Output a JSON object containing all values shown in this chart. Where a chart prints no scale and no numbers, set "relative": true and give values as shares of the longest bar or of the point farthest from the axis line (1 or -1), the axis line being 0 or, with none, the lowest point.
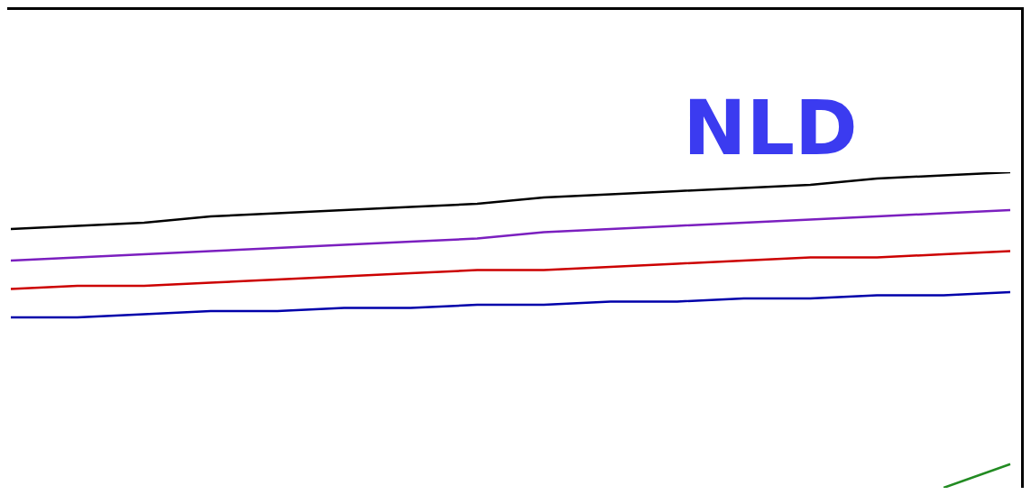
{
  "chart_data": {
    "type": "line",
    "relative": true,
    "annotations": [
      "NLD"
    ],
    "legend": false,
    "marker": "none",
    "categories": [
      null,
      null,
      null,
      null,
      null,
      null,
      null,
      null,
      null,
      null,
      null,
      null,
      null,
      null,
      null,
      null
    ],
    "series": [
      {
        "color": "#000000",
        "values": [
          0.82,
          0.83,
          0.84,
          0.86,
          0.87,
          0.88,
          0.89,
          0.9,
          0.92,
          0.93,
          0.94,
          0.95,
          0.96,
          0.98,
          0.99,
          1.0
        ]
      },
      {
        "color": "#7b1fbf",
        "values": [
          0.72,
          0.73,
          0.74,
          0.75,
          0.76,
          0.77,
          0.78,
          0.79,
          0.81,
          0.82,
          0.83,
          0.84,
          0.85,
          0.86,
          0.87,
          0.88
        ]
      },
      {
        "color": "#cc0000",
        "values": [
          0.63,
          0.64,
          0.64,
          0.65,
          0.66,
          0.67,
          0.68,
          0.69,
          0.69,
          0.7,
          0.71,
          0.72,
          0.73,
          0.73,
          0.74,
          0.75
        ]
      },
      {
        "color": "#0000aa",
        "values": [
          0.54,
          0.54,
          0.55,
          0.56,
          0.56,
          0.57,
          0.57,
          0.58,
          0.58,
          0.59,
          0.59,
          0.6,
          0.6,
          0.61,
          0.61,
          0.62
        ]
      },
      {
        "color": "#228b22",
        "values": [
          null,
          null,
          null,
          null,
          null,
          null,
          null,
          null,
          null,
          null,
          null,
          null,
          null,
          null,
          0,
          0.075
        ]
      }
    ]
  }
}
